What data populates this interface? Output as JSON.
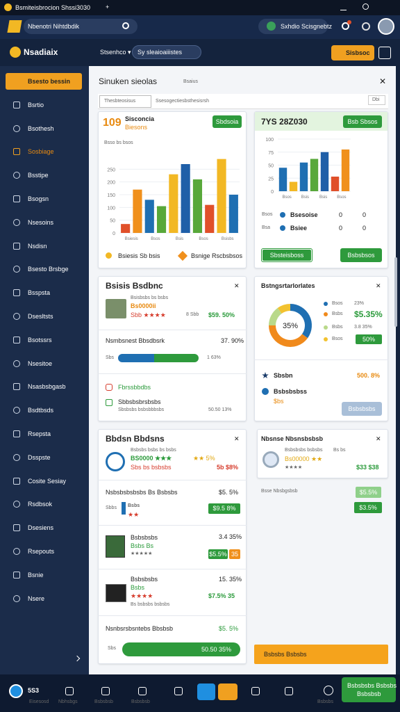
{
  "window": {
    "title": "Bsmiteisbrocion Shssi3030",
    "new_tab": "+"
  },
  "header": {
    "search": "Nbenotri Nihtdbdik",
    "user": "Sxhdio Scisgnebtz"
  },
  "toolbar": {
    "brand": "Nsadiaix",
    "menu": "Stsenhco ▾",
    "filter": "Sy sleaioaiiistes",
    "action": "Sisbsoc"
  },
  "sidebar": {
    "items": [
      "Bsesto bessin",
      "Bsrtio",
      "Bsothesh",
      "Sosbiage",
      "Bsstipe",
      "Bsogsn",
      "Nsesoins",
      "Nsdisn",
      "Bsesto Brsbge",
      "Bsspsta",
      "Dsesltsts",
      "Bsotssrs",
      "Nsesitoe",
      "Nsasbsbgasb",
      "Bsdtbsds",
      "Rsepsta",
      "Dsspste",
      "Cosite Sesiay",
      "Rsdbsok",
      "Dsesiens",
      "Rsepouts",
      "Bsnie",
      "Nsere"
    ]
  },
  "panel": {
    "title": "Sinuken sieolas",
    "subtitle": "Bsaius",
    "close": "✕",
    "tabs": [
      "Thesbteosisus",
      "Ssesogectiesbsthesisrsh",
      "Dbi"
    ]
  },
  "cards": [
    {
      "badge": "109",
      "title": "Sisconcia",
      "subtitle": "Biesons",
      "button": "Sbdsoia",
      "caption": "Bsso bs bsos",
      "chart": {
        "ylim": [
          0,
          300
        ],
        "yticks": [
          0,
          50,
          100,
          150,
          200,
          250
        ],
        "categories": [
          "Bsiesis",
          "Bsos",
          "Bsis",
          "Bsos",
          "Bsisbs"
        ],
        "bars": [
          {
            "color": "#e0502a",
            "value": 35
          },
          {
            "color": "#f0901c",
            "value": 170
          },
          {
            "color": "#1f6fb2",
            "value": 130
          },
          {
            "color": "#58a83a",
            "value": 105
          },
          {
            "color": "#f2b824",
            "value": 230
          },
          {
            "color": "#1f5fa8",
            "value": 270
          },
          {
            "color": "#58a83a",
            "value": 210
          },
          {
            "color": "#e0502a",
            "value": 110
          },
          {
            "color": "#f2b824",
            "value": 290
          },
          {
            "color": "#1f6fb2",
            "value": 150
          }
        ]
      },
      "legend": [
        "Bsiesis Sb bsis",
        "Bsnige Rscbsbsos"
      ]
    },
    {
      "title": "7YS 28Z030",
      "button": "Bsb Sbsos",
      "chart": {
        "ylim": [
          0,
          100
        ],
        "yticks": [
          0,
          25,
          50,
          75,
          100
        ],
        "categories": [
          "Bsos",
          "Bsis",
          "Bsis",
          "Bsos"
        ],
        "bars": [
          {
            "color": "#1f6fb2",
            "value": 45
          },
          {
            "color": "#f2b824",
            "value": 18
          },
          {
            "color": "#1f6fb2",
            "value": 55
          },
          {
            "color": "#58a83a",
            "value": 62
          },
          {
            "color": "#1f5fa8",
            "value": 75
          },
          {
            "color": "#e0502a",
            "value": 28
          },
          {
            "color": "#f0901c",
            "value": 80
          }
        ]
      },
      "rows": [
        [
          "Bsos",
          "Bsesoise",
          "0",
          "0"
        ],
        [
          "Bsa",
          "Bsiee",
          "0",
          "0"
        ]
      ],
      "buttons": [
        "Sbsteisboss",
        "Bsbsbsos"
      ]
    },
    {
      "title": "Bsisis Bsdbnc",
      "close": "✕",
      "item": [
        "Bsisbsbs bs bsbs",
        "Bs0000ii",
        "Sbb ★★★★",
        "8 Sbb",
        "$59. 50%"
      ],
      "progress_title": "Nsmbsnest Bbsdbsrk",
      "progress_value": "37. 90%",
      "progress_label": "Sbs",
      "progress_note": "1 63%",
      "links": [
        "Fbrssbbdbs",
        "Sbbsbsbrsbsbs",
        "Sbsbsbs bsbsbbbsbs",
        "50.50 13%"
      ]
    },
    {
      "title": "Bstngsrtarlorlates",
      "close": "✕",
      "center": "35%",
      "donut": [
        {
          "color": "#1f6fb2",
          "value": 35
        },
        {
          "color": "#f08a1c",
          "value": 40
        },
        {
          "color": "#b9d98a",
          "value": 15
        },
        {
          "color": "#f2c230",
          "value": 10
        }
      ],
      "legend": [
        [
          "Bsos",
          "23%"
        ],
        [
          "Bsbs",
          "$5.35%"
        ],
        [
          "Bsbs",
          "3.8 35%"
        ],
        [
          "Bsos",
          "50%"
        ]
      ],
      "rows": [
        "Sbsbn",
        "500. 8%",
        "Bsbsbsbss",
        "$bs"
      ],
      "button": "Bsbsbsbs"
    },
    {
      "title": "Bbdsn Bbdsns",
      "close": "✕",
      "item1": [
        "Bsbsbs bsbs bs bsbs",
        "BS0000 ★★★",
        "Sbs bs bsbsbs",
        "★★ 5%",
        "5b $8%"
      ],
      "section": [
        "Nsbsbsbsbsbs Bs Bsbsbs",
        "$5. 5%",
        "Sbbs",
        "Bsbs",
        "★★",
        "$9.5 8%"
      ],
      "item2": [
        "Bsbsbsbs",
        "Bsbs Bs",
        "★★★★★",
        "3.4 35%",
        "$5.5%",
        "35"
      ],
      "item3": [
        "Bsbsbsbs",
        "Bsbs",
        "★★★★",
        "Bs bsbsbs bsbsbs",
        "15. 35%",
        "$7.5% 35"
      ],
      "footer": [
        "Nsnbsrsbsntebs Bbsbsb",
        "$5. 5%",
        "Sbs",
        "50.50 35%"
      ]
    },
    {
      "title": "Nbsnse Nbsnsbsbsb",
      "close": "✕",
      "item": [
        "Bsbsbsbs bsbsbs",
        "Bs00000 ★★",
        "★★★★",
        "Bs bs",
        "$33 $38"
      ],
      "section": [
        "Bsse Nbsbgsbsb",
        "$5.5%",
        "$3.5%"
      ],
      "action": "Bsbsbs Bsbsbs"
    }
  ],
  "taskbar": {
    "count": "5S3",
    "labels": [
      "Eisesosd",
      "Nbhsbgs",
      "Bsbsbsb",
      "Bsbsbsb",
      "Bsbsbs"
    ],
    "button": [
      "Bsbsbsbs Bsbsbs",
      "Bsbsbsb"
    ]
  }
}
